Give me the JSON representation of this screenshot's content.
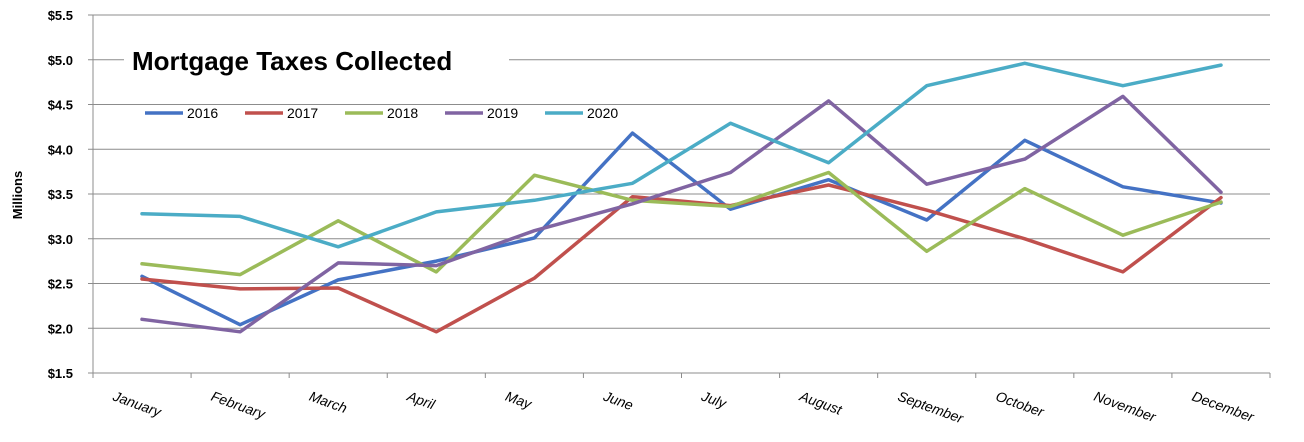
{
  "chart_data": {
    "type": "line",
    "title": "Mortgage Taxes Collected",
    "ylabel": "Millions",
    "xlabel": "",
    "ylim": [
      1.5,
      5.5
    ],
    "y_ticks": [
      "$1.5",
      "$2.0",
      "$2.5",
      "$3.0",
      "$3.5",
      "$4.0",
      "$4.5",
      "$5.0",
      "$5.5"
    ],
    "y_tick_values": [
      1.5,
      2.0,
      2.5,
      3.0,
      3.5,
      4.0,
      4.5,
      5.0,
      5.5
    ],
    "grid": true,
    "legend_position": "top-left",
    "categories": [
      "January",
      "February",
      "March",
      "April",
      "May",
      "June",
      "July",
      "August",
      "September",
      "October",
      "November",
      "December"
    ],
    "series": [
      {
        "name": "2016",
        "color": "#4472C4",
        "values": [
          2.58,
          2.04,
          2.54,
          2.75,
          3.01,
          4.18,
          3.33,
          3.66,
          3.21,
          4.1,
          3.58,
          3.4
        ]
      },
      {
        "name": "2017",
        "color": "#C0504D",
        "values": [
          2.55,
          2.44,
          2.45,
          1.96,
          2.56,
          3.47,
          3.37,
          3.6,
          3.32,
          3.0,
          2.63,
          3.46
        ]
      },
      {
        "name": "2018",
        "color": "#9BBB59",
        "values": [
          2.72,
          2.6,
          3.2,
          2.63,
          3.71,
          3.43,
          3.36,
          3.74,
          2.86,
          3.56,
          3.04,
          3.41
        ]
      },
      {
        "name": "2019",
        "color": "#8064A2",
        "values": [
          2.1,
          1.96,
          2.73,
          2.7,
          3.09,
          3.39,
          3.74,
          4.54,
          3.61,
          3.89,
          4.59,
          3.52
        ]
      },
      {
        "name": "2020",
        "color": "#4BACC6",
        "values": [
          3.28,
          3.25,
          2.91,
          3.3,
          3.43,
          3.62,
          4.29,
          3.85,
          4.71,
          4.96,
          4.71,
          4.94
        ]
      }
    ]
  }
}
